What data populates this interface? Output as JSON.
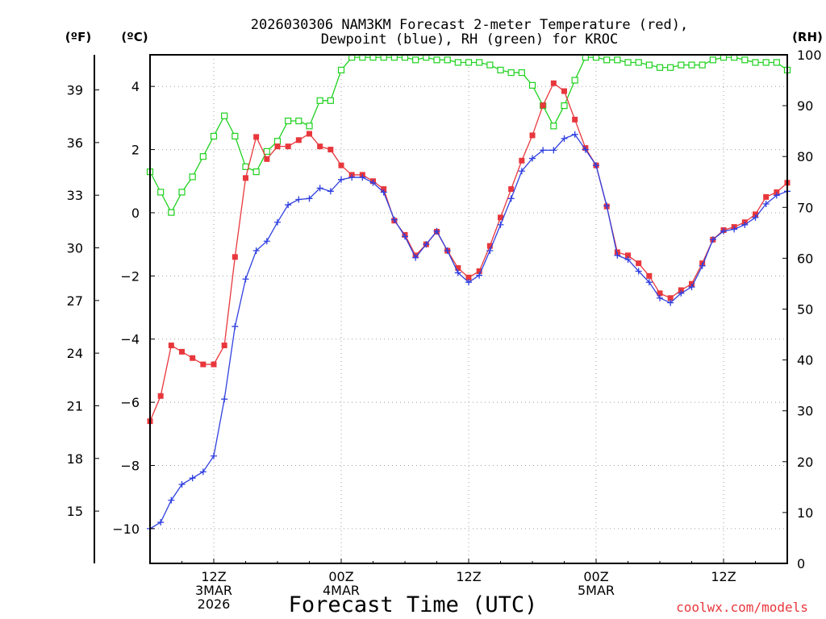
{
  "chart_data": {
    "type": "line",
    "title_line1": "2026030306 NAM3KM Forecast 2-meter Temperature (red),",
    "title_line2": "Dewpoint (blue), RH (green) for KROC",
    "xlabel": "Forecast Time (UTC)",
    "watermark": "coolwx.com/models",
    "left_unit_f": "(ºF)",
    "left_unit_c": "(ºC)",
    "right_unit": "(RH)",
    "ylim_c": [
      -11.1,
      5.0
    ],
    "ylim_rh": [
      0,
      100
    ],
    "hours_range": [
      0,
      60
    ],
    "yticks_c": [
      4,
      2,
      0,
      -2,
      -4,
      -6,
      -8,
      -10
    ],
    "yticks_c_labels": [
      "4",
      "2",
      "0",
      "−2",
      "−4",
      "−6",
      "−8",
      "−10"
    ],
    "yticks_f": [
      39,
      36,
      33,
      30,
      27,
      24,
      21,
      18,
      15
    ],
    "yticks_rh": [
      100,
      90,
      80,
      70,
      60,
      50,
      40,
      30,
      20,
      10,
      0
    ],
    "xticks": [
      {
        "hour": 6,
        "lines": [
          "12Z",
          "3MAR",
          "2026"
        ]
      },
      {
        "hour": 18,
        "lines": [
          "00Z",
          "4MAR"
        ]
      },
      {
        "hour": 30,
        "lines": [
          "12Z"
        ]
      },
      {
        "hour": 42,
        "lines": [
          "00Z",
          "5MAR"
        ]
      },
      {
        "hour": 54,
        "lines": [
          "12Z"
        ]
      }
    ],
    "colors": {
      "temperature": "#e8373c",
      "dewpoint": "#2f3fe0",
      "rh": "#1fd11f",
      "grid": "#a0a0a0",
      "watermark": "#e8373c"
    },
    "series": [
      {
        "name": "Temperature",
        "unit": "C",
        "values": [
          -6.6,
          -5.8,
          -4.2,
          -4.4,
          -4.6,
          -4.8,
          -4.8,
          -4.2,
          -1.4,
          1.1,
          2.4,
          1.7,
          2.1,
          2.1,
          2.3,
          2.5,
          2.1,
          2.0,
          1.5,
          1.2,
          1.2,
          1.0,
          0.75,
          -0.25,
          -0.7,
          -1.35,
          -1.0,
          -0.6,
          -1.2,
          -1.75,
          -2.05,
          -1.85,
          -1.05,
          -0.15,
          0.75,
          1.65,
          2.45,
          3.4,
          4.1,
          3.85,
          2.95,
          2.05,
          1.5,
          0.2,
          -1.25,
          -1.35,
          -1.6,
          -2.0,
          -2.55,
          -2.7,
          -2.45,
          -2.25,
          -1.6,
          -0.85,
          -0.55,
          -0.45,
          -0.3,
          -0.05,
          0.5,
          0.65,
          0.95
        ]
      },
      {
        "name": "Dewpoint",
        "unit": "C",
        "values": [
          -10.0,
          -9.8,
          -9.1,
          -8.6,
          -8.4,
          -8.2,
          -7.7,
          -5.9,
          -3.6,
          -2.1,
          -1.2,
          -0.9,
          -0.3,
          0.25,
          0.42,
          0.45,
          0.78,
          0.68,
          1.05,
          1.12,
          1.12,
          0.95,
          0.65,
          -0.22,
          -0.75,
          -1.42,
          -1.0,
          -0.58,
          -1.2,
          -1.9,
          -2.2,
          -1.98,
          -1.2,
          -0.38,
          0.45,
          1.32,
          1.72,
          1.98,
          1.98,
          2.35,
          2.48,
          2.0,
          1.5,
          0.22,
          -1.35,
          -1.48,
          -1.85,
          -2.2,
          -2.7,
          -2.85,
          -2.55,
          -2.35,
          -1.68,
          -0.85,
          -0.58,
          -0.52,
          -0.38,
          -0.15,
          0.28,
          0.55,
          0.68
        ]
      },
      {
        "name": "RH",
        "unit": "%",
        "values": [
          77,
          73,
          69,
          73,
          76,
          80,
          84,
          88,
          84,
          78,
          77,
          81,
          83,
          87,
          87,
          86,
          91,
          91,
          97,
          99.5,
          99.5,
          99.5,
          99.5,
          99.5,
          99.5,
          99,
          99.5,
          99,
          99,
          98.5,
          98.5,
          98.5,
          98,
          97,
          96.5,
          96.5,
          94,
          90,
          86,
          90,
          95,
          99.5,
          99.5,
          99,
          99,
          98.5,
          98.5,
          98,
          97.5,
          97.5,
          98,
          98,
          98,
          99,
          99.5,
          99.5,
          99,
          98.5,
          98.5,
          98.5,
          97
        ]
      }
    ]
  }
}
